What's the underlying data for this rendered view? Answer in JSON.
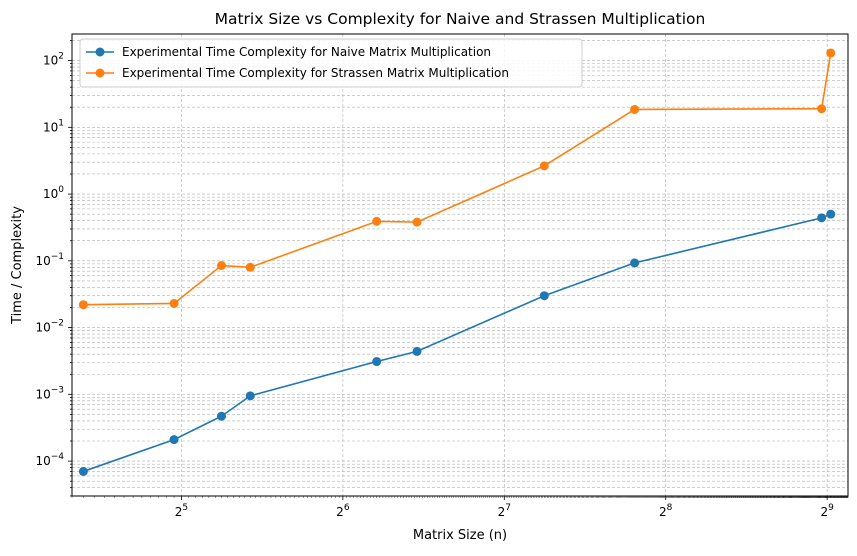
{
  "chart_data": {
    "type": "line",
    "title": "Matrix Size vs Complexity for Naive and Strassen Multiplication",
    "xlabel": "Matrix Size (n)",
    "ylabel": "Time / Complexity",
    "xscale": "log2",
    "yscale": "log10",
    "xlim": [
      20,
      560
    ],
    "ylim": [
      3e-05,
      250
    ],
    "x_ticks": [
      {
        "value": 32,
        "base": "2",
        "exp": "5"
      },
      {
        "value": 64,
        "base": "2",
        "exp": "6"
      },
      {
        "value": 128,
        "base": "2",
        "exp": "7"
      },
      {
        "value": 256,
        "base": "2",
        "exp": "8"
      },
      {
        "value": 512,
        "base": "2",
        "exp": "9"
      }
    ],
    "y_ticks": [
      {
        "value": 0.0001,
        "base": "10",
        "exp": "−4"
      },
      {
        "value": 0.001,
        "base": "10",
        "exp": "−3"
      },
      {
        "value": 0.01,
        "base": "10",
        "exp": "−2"
      },
      {
        "value": 0.1,
        "base": "10",
        "exp": "−1"
      },
      {
        "value": 1,
        "base": "10",
        "exp": "0"
      },
      {
        "value": 10,
        "base": "10",
        "exp": "1"
      },
      {
        "value": 100,
        "base": "10",
        "exp": "2"
      }
    ],
    "grid": true,
    "legend_position": "top-left",
    "series": [
      {
        "name": "Experimental Time Complexity for Naive Matrix Multiplication",
        "color": "#1f77b4",
        "marker": "circle",
        "x": [
          21,
          31,
          38,
          43,
          74,
          88,
          152,
          224,
          500,
          520
        ],
        "y": [
          7e-05,
          0.00021,
          0.00047,
          0.00095,
          0.0031,
          0.0044,
          0.03,
          0.093,
          0.44,
          0.5
        ]
      },
      {
        "name": "Experimental Time Complexity for Strassen Matrix Multiplication",
        "color": "#ff7f0e",
        "marker": "circle",
        "x": [
          21,
          31,
          38,
          43,
          74,
          88,
          152,
          224,
          500,
          520
        ],
        "y": [
          0.022,
          0.023,
          0.085,
          0.08,
          0.39,
          0.38,
          2.65,
          18.5,
          19,
          130
        ]
      }
    ]
  }
}
